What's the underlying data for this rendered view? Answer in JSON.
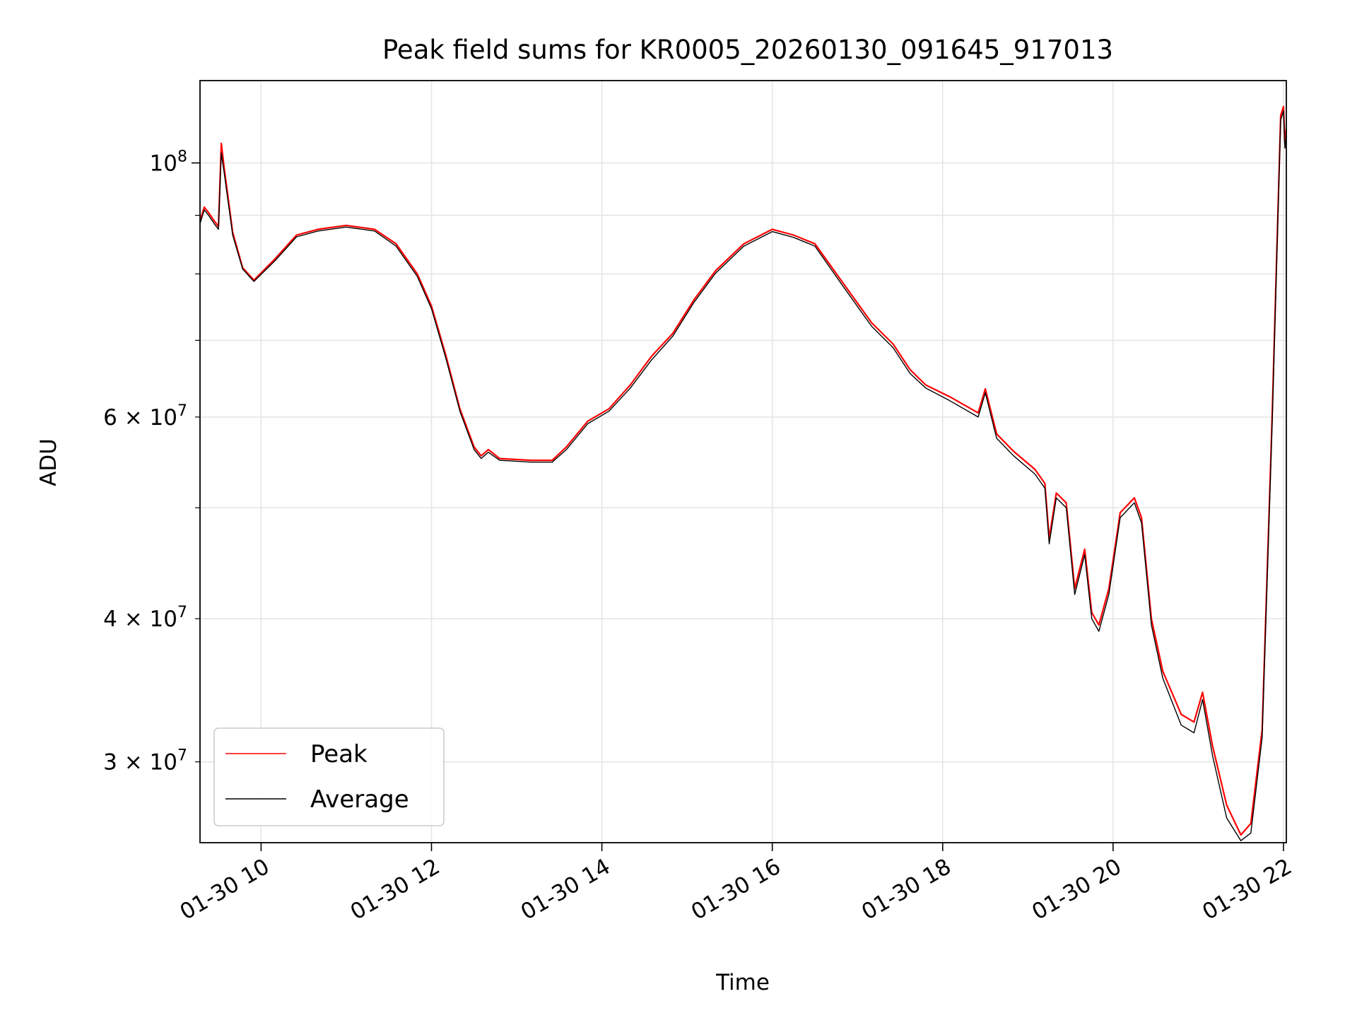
{
  "chart_data": {
    "type": "line",
    "title": "Peak field sums for KR0005_20260130_091645_917013",
    "xlabel": "Time",
    "ylabel": "ADU",
    "yscale": "log",
    "xlim": [
      "01-30 09:17",
      "01-30 22:02"
    ],
    "ylim": [
      25500000,
      118000000
    ],
    "xticks": [
      {
        "t": "01-30 10:00",
        "label": "01-30 10"
      },
      {
        "t": "01-30 12:00",
        "label": "01-30 12"
      },
      {
        "t": "01-30 14:00",
        "label": "01-30 14"
      },
      {
        "t": "01-30 16:00",
        "label": "01-30 16"
      },
      {
        "t": "01-30 18:00",
        "label": "01-30 18"
      },
      {
        "t": "01-30 20:00",
        "label": "01-30 20"
      },
      {
        "t": "01-30 22:00",
        "label": "01-30 22"
      }
    ],
    "yticks_major": [
      {
        "v": 100000000,
        "base": "10",
        "exp": "8"
      }
    ],
    "yticks_minor": [
      {
        "v": 30000000,
        "base": "3 × 10",
        "exp": "7"
      },
      {
        "v": 40000000,
        "base": "4 × 10",
        "exp": "7"
      },
      {
        "v": 50000000
      },
      {
        "v": 60000000,
        "base": "6 × 10",
        "exp": "7"
      },
      {
        "v": 70000000
      },
      {
        "v": 80000000
      },
      {
        "v": 90000000
      }
    ],
    "grid": true,
    "legend_position": "lower-left",
    "series": [
      {
        "name": "Peak",
        "color": "#ff0000",
        "points": [
          [
            "01-30 09:17",
            89000000
          ],
          [
            "01-30 09:20",
            91500000
          ],
          [
            "01-30 09:23",
            90500000
          ],
          [
            "01-30 09:27",
            89000000
          ],
          [
            "01-30 09:30",
            88000000
          ],
          [
            "01-30 09:32",
            104000000
          ],
          [
            "01-30 09:34",
            99000000
          ],
          [
            "01-30 09:40",
            87000000
          ],
          [
            "01-30 09:47",
            81000000
          ],
          [
            "01-30 09:55",
            79000000
          ],
          [
            "01-30 10:10",
            82500000
          ],
          [
            "01-30 10:25",
            86500000
          ],
          [
            "01-30 10:40",
            87500000
          ],
          [
            "01-30 11:00",
            88200000
          ],
          [
            "01-30 11:20",
            87500000
          ],
          [
            "01-30 11:35",
            85000000
          ],
          [
            "01-30 11:50",
            80000000
          ],
          [
            "01-30 12:00",
            75000000
          ],
          [
            "01-30 12:10",
            68000000
          ],
          [
            "01-30 12:20",
            61000000
          ],
          [
            "01-30 12:30",
            56500000
          ],
          [
            "01-30 12:35",
            55500000
          ],
          [
            "01-30 12:40",
            56200000
          ],
          [
            "01-30 12:48",
            55200000
          ],
          [
            "01-30 13:10",
            55000000
          ],
          [
            "01-30 13:25",
            55000000
          ],
          [
            "01-30 13:35",
            56500000
          ],
          [
            "01-30 13:50",
            59500000
          ],
          [
            "01-30 14:05",
            61000000
          ],
          [
            "01-30 14:20",
            64000000
          ],
          [
            "01-30 14:35",
            67800000
          ],
          [
            "01-30 14:50",
            71000000
          ],
          [
            "01-30 15:05",
            76000000
          ],
          [
            "01-30 15:20",
            80500000
          ],
          [
            "01-30 15:40",
            85000000
          ],
          [
            "01-30 16:00",
            87500000
          ],
          [
            "01-30 16:15",
            86500000
          ],
          [
            "01-30 16:30",
            85000000
          ],
          [
            "01-30 16:50",
            78500000
          ],
          [
            "01-30 17:10",
            72500000
          ],
          [
            "01-30 17:25",
            69500000
          ],
          [
            "01-30 17:37",
            66000000
          ],
          [
            "01-30 17:48",
            64000000
          ],
          [
            "01-30 18:05",
            62500000
          ],
          [
            "01-30 18:25",
            60500000
          ],
          [
            "01-30 18:30",
            63500000
          ],
          [
            "01-30 18:38",
            58000000
          ],
          [
            "01-30 18:50",
            56000000
          ],
          [
            "01-30 19:05",
            54000000
          ],
          [
            "01-30 19:12",
            52500000
          ],
          [
            "01-30 19:15",
            47000000
          ],
          [
            "01-30 19:20",
            51500000
          ],
          [
            "01-30 19:27",
            50500000
          ],
          [
            "01-30 19:33",
            42500000
          ],
          [
            "01-30 19:40",
            46000000
          ],
          [
            "01-30 19:45",
            40500000
          ],
          [
            "01-30 19:50",
            39500000
          ],
          [
            "01-30 19:57",
            42500000
          ],
          [
            "01-30 20:05",
            49500000
          ],
          [
            "01-30 20:15",
            51000000
          ],
          [
            "01-30 20:20",
            49000000
          ],
          [
            "01-30 20:27",
            40000000
          ],
          [
            "01-30 20:35",
            36000000
          ],
          [
            "01-30 20:48",
            33000000
          ],
          [
            "01-30 20:57",
            32500000
          ],
          [
            "01-30 21:03",
            34500000
          ],
          [
            "01-30 21:10",
            31000000
          ],
          [
            "01-30 21:20",
            27500000
          ],
          [
            "01-30 21:30",
            25900000
          ],
          [
            "01-30 21:37",
            26500000
          ],
          [
            "01-30 21:45",
            32000000
          ],
          [
            "01-30 21:52",
            60000000
          ],
          [
            "01-30 21:58",
            110000000
          ],
          [
            "01-30 22:00",
            112000000
          ],
          [
            "01-30 22:01",
            104000000
          ],
          [
            "01-30 22:02",
            107000000
          ]
        ]
      },
      {
        "name": "Average",
        "color": "#000000",
        "points": [
          [
            "01-30 09:17",
            88500000
          ],
          [
            "01-30 09:20",
            91000000
          ],
          [
            "01-30 09:23",
            90000000
          ],
          [
            "01-30 09:27",
            88500000
          ],
          [
            "01-30 09:30",
            87500000
          ],
          [
            "01-30 09:32",
            102000000
          ],
          [
            "01-30 09:34",
            98000000
          ],
          [
            "01-30 09:40",
            86500000
          ],
          [
            "01-30 09:47",
            80800000
          ],
          [
            "01-30 09:55",
            78800000
          ],
          [
            "01-30 10:10",
            82200000
          ],
          [
            "01-30 10:25",
            86200000
          ],
          [
            "01-30 10:40",
            87200000
          ],
          [
            "01-30 11:00",
            87900000
          ],
          [
            "01-30 11:20",
            87200000
          ],
          [
            "01-30 11:35",
            84600000
          ],
          [
            "01-30 11:50",
            79600000
          ],
          [
            "01-30 12:00",
            74600000
          ],
          [
            "01-30 12:10",
            67600000
          ],
          [
            "01-30 12:20",
            60700000
          ],
          [
            "01-30 12:30",
            56200000
          ],
          [
            "01-30 12:35",
            55200000
          ],
          [
            "01-30 12:40",
            55900000
          ],
          [
            "01-30 12:48",
            55000000
          ],
          [
            "01-30 13:10",
            54800000
          ],
          [
            "01-30 13:25",
            54800000
          ],
          [
            "01-30 13:35",
            56200000
          ],
          [
            "01-30 13:50",
            59200000
          ],
          [
            "01-30 14:05",
            60700000
          ],
          [
            "01-30 14:20",
            63600000
          ],
          [
            "01-30 14:35",
            67300000
          ],
          [
            "01-30 14:50",
            70600000
          ],
          [
            "01-30 15:05",
            75600000
          ],
          [
            "01-30 15:20",
            80100000
          ],
          [
            "01-30 15:40",
            84600000
          ],
          [
            "01-30 16:00",
            87100000
          ],
          [
            "01-30 16:15",
            86100000
          ],
          [
            "01-30 16:30",
            84600000
          ],
          [
            "01-30 16:50",
            78000000
          ],
          [
            "01-30 17:10",
            72000000
          ],
          [
            "01-30 17:25",
            69000000
          ],
          [
            "01-30 17:37",
            65500000
          ],
          [
            "01-30 17:48",
            63600000
          ],
          [
            "01-30 18:05",
            62000000
          ],
          [
            "01-30 18:25",
            60000000
          ],
          [
            "01-30 18:30",
            63000000
          ],
          [
            "01-30 18:38",
            57500000
          ],
          [
            "01-30 18:50",
            55500000
          ],
          [
            "01-30 19:05",
            53500000
          ],
          [
            "01-30 19:12",
            52000000
          ],
          [
            "01-30 19:15",
            46500000
          ],
          [
            "01-30 19:20",
            51000000
          ],
          [
            "01-30 19:27",
            50000000
          ],
          [
            "01-30 19:33",
            42000000
          ],
          [
            "01-30 19:40",
            45500000
          ],
          [
            "01-30 19:45",
            40000000
          ],
          [
            "01-30 19:50",
            39000000
          ],
          [
            "01-30 19:57",
            42000000
          ],
          [
            "01-30 20:05",
            49000000
          ],
          [
            "01-30 20:15",
            50500000
          ],
          [
            "01-30 20:20",
            48500000
          ],
          [
            "01-30 20:27",
            39500000
          ],
          [
            "01-30 20:35",
            35500000
          ],
          [
            "01-30 20:48",
            32300000
          ],
          [
            "01-30 20:57",
            31800000
          ],
          [
            "01-30 21:03",
            34000000
          ],
          [
            "01-30 21:10",
            30400000
          ],
          [
            "01-30 21:20",
            26800000
          ],
          [
            "01-30 21:30",
            25600000
          ],
          [
            "01-30 21:37",
            26000000
          ],
          [
            "01-30 21:45",
            31500000
          ],
          [
            "01-30 21:52",
            59000000
          ],
          [
            "01-30 21:58",
            109000000
          ],
          [
            "01-30 22:00",
            111000000
          ],
          [
            "01-30 22:01",
            103000000
          ],
          [
            "01-30 22:02",
            105500000
          ]
        ]
      }
    ]
  }
}
